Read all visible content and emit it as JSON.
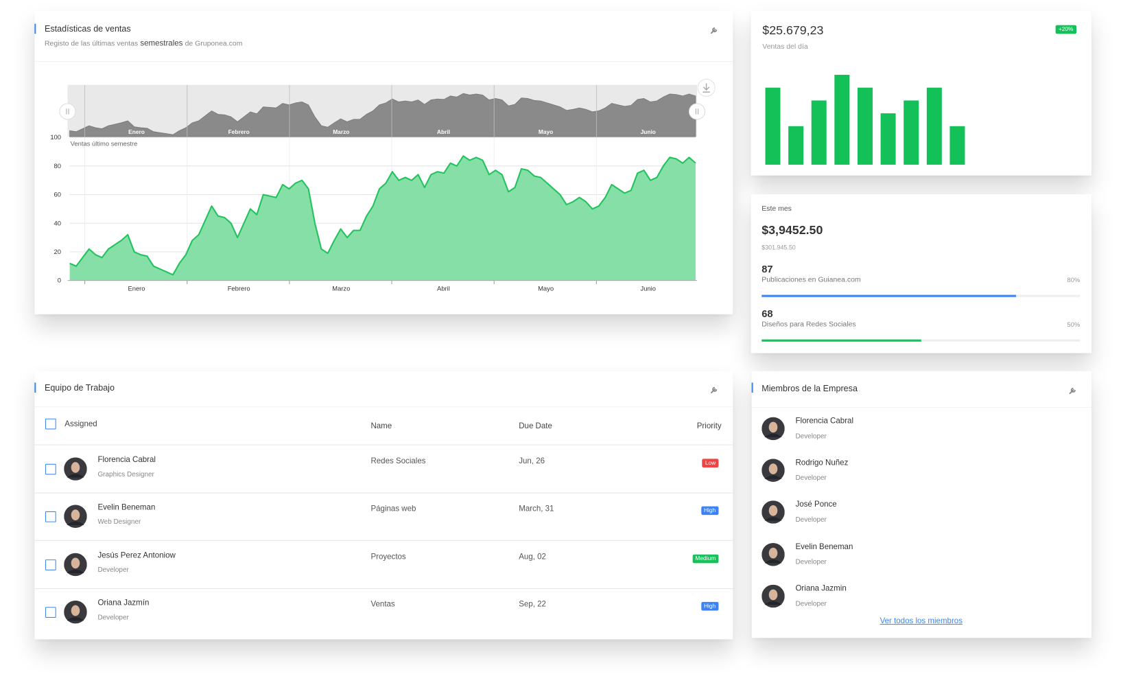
{
  "sales_card": {
    "title": "Estadísticas de ventas",
    "subtitle_start": "Registo de las últimas ventas",
    "subtitle_highlight": "semestrales",
    "subtitle_end": "de Gruponea.com"
  },
  "chart_data": {
    "type": "area",
    "title": "Ventas último semestre",
    "months": [
      "Enero",
      "Febrero",
      "Marzo",
      "Abril",
      "Mayo",
      "Junio"
    ],
    "values": [
      12,
      10,
      16,
      22,
      18,
      16,
      22,
      25,
      28,
      32,
      20,
      18,
      17,
      10,
      8,
      6,
      4,
      12,
      18,
      28,
      32,
      42,
      52,
      45,
      44,
      40,
      30,
      40,
      50,
      46,
      60,
      59,
      58,
      67,
      64,
      68,
      70,
      64,
      40,
      22,
      19,
      28,
      36,
      30,
      35,
      35,
      45,
      52,
      64,
      68,
      76,
      70,
      72,
      70,
      74,
      65,
      74,
      76,
      75,
      82,
      80,
      87,
      84,
      86,
      84,
      74,
      77,
      74,
      62,
      65,
      78,
      77,
      73,
      72,
      68,
      64,
      60,
      53,
      55,
      58,
      55,
      50,
      52,
      58,
      67,
      64,
      61,
      63,
      75,
      77,
      70,
      72,
      80,
      86,
      85,
      82,
      86,
      82
    ],
    "ylim": [
      0,
      100
    ],
    "yticks": [
      0,
      20,
      40,
      60,
      80,
      100
    ],
    "grid": true,
    "color": "#22c35e",
    "fill_color": "#86dfa6",
    "navigator_color": "#8a8a8a"
  },
  "day_card": {
    "amount": "$25.679,23",
    "label": "Ventas del día",
    "badge": "+20%",
    "chart": {
      "type": "bar",
      "values": [
        6,
        3,
        5,
        7,
        6,
        4,
        5,
        6,
        3
      ],
      "color": "#14c159"
    }
  },
  "month_card": {
    "label": "Este mes",
    "amount": "$3,9452.50",
    "sub": "$301.945.50",
    "stats": [
      {
        "count": 87,
        "label": "Publicaciones en Guianea.com",
        "percent": {
          "value": 80,
          "label": "80%"
        },
        "color": "#3f86f2"
      },
      {
        "count": 68,
        "label": "Diseños para Redes Sociales",
        "percent": {
          "value": 50,
          "label": "50%"
        },
        "color": "#14c159"
      }
    ]
  },
  "team": {
    "title": "Equipo de Trabajo",
    "columns": [
      "Assigned",
      "Name",
      "Due Date",
      "Priority"
    ],
    "rows": [
      {
        "name": "Florencia Cabral",
        "role": "Graphics Designer",
        "task": "Redes Sociales",
        "due": "Jun, 26",
        "priority": "Low",
        "priority_color": "#ef4444"
      },
      {
        "name": "Evelin Beneman",
        "role": "Web Designer",
        "task": "Páginas web",
        "due": "March, 31",
        "priority": "High",
        "priority_color": "#3b82f6"
      },
      {
        "name": "Jesús Perez Antoniow",
        "role": "Developer",
        "task": "Proyectos",
        "due": "Aug, 02",
        "priority": "Medium",
        "priority_color": "#16c05a"
      },
      {
        "name": "Oriana Jazmín",
        "role": "Developer",
        "task": "Ventas",
        "due": "Sep, 22",
        "priority": "High",
        "priority_color": "#3b82f6"
      }
    ]
  },
  "members": {
    "title": "Miembros de la Empresa",
    "list": [
      {
        "name": "Florencia Cabral",
        "role": "Developer"
      },
      {
        "name": "Rodrigo Nuñez",
        "role": "Developer"
      },
      {
        "name": "José Ponce",
        "role": "Developer"
      },
      {
        "name": "Evelin Beneman",
        "role": "Developer"
      },
      {
        "name": "Oriana Jazmin",
        "role": "Developer"
      }
    ],
    "link": "Ver todos los miembros"
  }
}
